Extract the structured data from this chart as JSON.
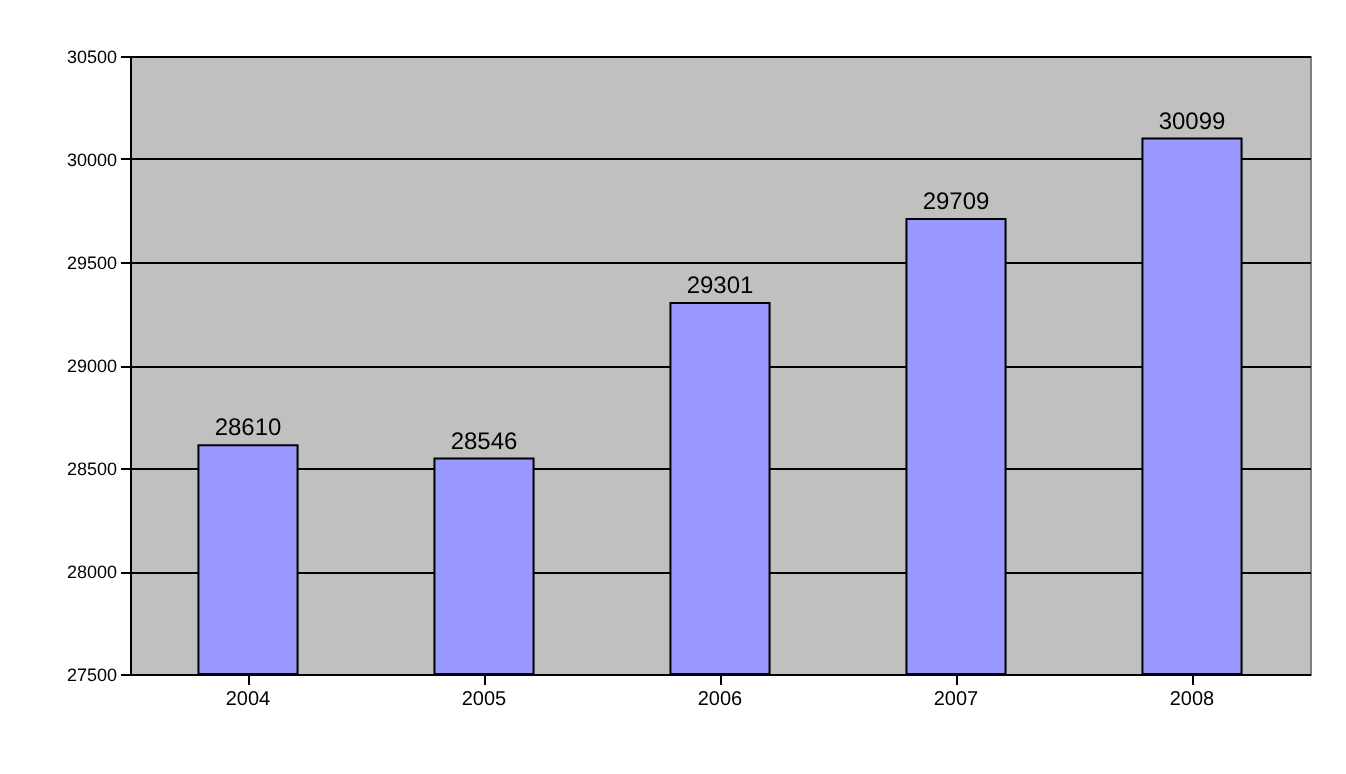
{
  "chart_data": {
    "type": "bar",
    "categories": [
      "2004",
      "2005",
      "2006",
      "2007",
      "2008"
    ],
    "values": [
      28610,
      28546,
      29301,
      29709,
      30099
    ],
    "color": "#9999ff",
    "ylim": [
      27500,
      30500
    ],
    "yticks": [
      27500,
      28000,
      28500,
      29000,
      29500,
      30000,
      30500
    ],
    "grid": "y",
    "data_labels": true
  }
}
